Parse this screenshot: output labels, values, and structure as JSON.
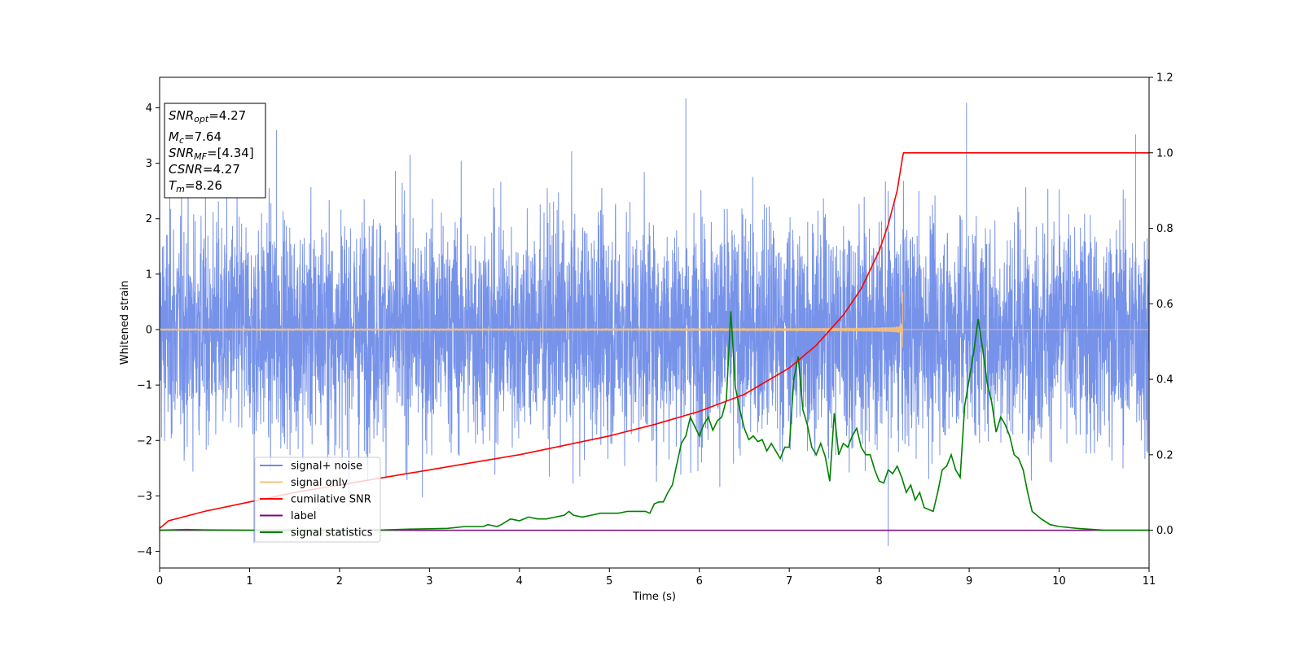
{
  "chart_data": {
    "type": "line",
    "xlabel": "Time (s)",
    "ylabel": "Whitened strain",
    "xlim": [
      0,
      11
    ],
    "ylim_left": [
      -4.3,
      4.55
    ],
    "ylim_right": [
      -0.1,
      1.2
    ],
    "x_ticks": [
      0,
      1,
      2,
      3,
      4,
      5,
      6,
      7,
      8,
      9,
      10,
      11
    ],
    "y_ticks_left": [
      -4,
      -3,
      -2,
      -1,
      0,
      1,
      2,
      3,
      4
    ],
    "y_ticks_right": [
      0.0,
      0.2,
      0.4,
      0.6,
      0.8,
      1.0,
      1.2
    ],
    "grid": false,
    "legend_position": "lower-left",
    "annotation": {
      "snr_opt": {
        "sym": "SNR",
        "sub": "opt",
        "value": "=4.27"
      },
      "mc": {
        "sym": "M",
        "sub": "c",
        "value": "=7.64"
      },
      "snr_mf": {
        "sym": "SNR",
        "sub": "MF",
        "value": "=[4.34]"
      },
      "csnr": {
        "sym": "CSNR",
        "value": "=4.27"
      },
      "tm": {
        "sym": "T",
        "sub": "m",
        "value": "=8.26"
      }
    },
    "series": [
      {
        "name": "signal+ noise",
        "axis": "left",
        "color": "#6f8ce8",
        "description_values": {
          "band_std": 1.0,
          "typical_max": 3.5,
          "peaks": [
            [
              1.3,
              3.6
            ],
            [
              5.85,
              4.17
            ],
            [
              8.97,
              4.09
            ],
            [
              10.85,
              3.52
            ],
            [
              8.1,
              -3.9
            ],
            [
              1.05,
              -3.85
            ]
          ]
        }
      },
      {
        "name": "signal only",
        "axis": "left",
        "color": "#f5c07a",
        "description_values": {
          "chirp_start": 0.0,
          "chirp_end": 8.26,
          "amplitude_at_start": 0.02,
          "amplitude_at_end": 0.68
        }
      },
      {
        "name": "cumilative SNR",
        "axis": "right",
        "color": "#ff0000",
        "x": [
          0,
          0.1,
          0.5,
          1,
          1.5,
          2,
          2.5,
          3,
          3.5,
          4,
          4.5,
          5,
          5.5,
          6,
          6.5,
          7,
          7.3,
          7.6,
          7.8,
          8.0,
          8.1,
          8.2,
          8.26,
          8.27,
          11
        ],
        "y": [
          0.005,
          0.025,
          0.05,
          0.075,
          0.1,
          0.12,
          0.14,
          0.16,
          0.18,
          0.2,
          0.225,
          0.25,
          0.28,
          0.315,
          0.36,
          0.43,
          0.49,
          0.57,
          0.64,
          0.74,
          0.81,
          0.9,
          0.99,
          1.0,
          1.0
        ]
      },
      {
        "name": "label",
        "axis": "right",
        "color": "#800080",
        "x": [
          0,
          11
        ],
        "y": [
          0,
          0
        ]
      },
      {
        "name": "signal statistics",
        "axis": "right",
        "color": "#008000",
        "x": [
          0,
          0.3,
          0.5,
          1,
          1.5,
          2,
          2.5,
          2.8,
          3,
          3.2,
          3.4,
          3.5,
          3.6,
          3.65,
          3.75,
          3.8,
          3.9,
          4.0,
          4.1,
          4.2,
          4.3,
          4.4,
          4.5,
          4.55,
          4.6,
          4.7,
          4.8,
          4.9,
          5.0,
          5.1,
          5.2,
          5.3,
          5.4,
          5.45,
          5.5,
          5.55,
          5.6,
          5.65,
          5.7,
          5.8,
          5.85,
          5.9,
          6.0,
          6.05,
          6.1,
          6.15,
          6.2,
          6.25,
          6.3,
          6.35,
          6.4,
          6.45,
          6.5,
          6.55,
          6.6,
          6.65,
          6.7,
          6.75,
          6.8,
          6.85,
          6.9,
          6.95,
          7.0,
          7.05,
          7.1,
          7.15,
          7.2,
          7.25,
          7.3,
          7.35,
          7.4,
          7.45,
          7.5,
          7.55,
          7.6,
          7.65,
          7.7,
          7.75,
          7.8,
          7.85,
          7.9,
          7.95,
          8.0,
          8.05,
          8.1,
          8.15,
          8.2,
          8.25,
          8.3,
          8.35,
          8.4,
          8.45,
          8.5,
          8.55,
          8.6,
          8.65,
          8.7,
          8.75,
          8.8,
          8.85,
          8.9,
          8.95,
          9.0,
          9.05,
          9.1,
          9.15,
          9.2,
          9.25,
          9.3,
          9.35,
          9.4,
          9.45,
          9.5,
          9.55,
          9.6,
          9.65,
          9.7,
          9.8,
          9.9,
          10.0,
          10.2,
          10.5,
          11
        ],
        "y": [
          0.0,
          0.002,
          0.001,
          0.0,
          0.0,
          0.0,
          0.001,
          0.003,
          0.004,
          0.005,
          0.01,
          0.01,
          0.01,
          0.015,
          0.01,
          0.015,
          0.03,
          0.025,
          0.035,
          0.03,
          0.03,
          0.035,
          0.04,
          0.05,
          0.04,
          0.035,
          0.04,
          0.045,
          0.045,
          0.045,
          0.05,
          0.05,
          0.05,
          0.045,
          0.07,
          0.075,
          0.075,
          0.1,
          0.12,
          0.23,
          0.25,
          0.3,
          0.25,
          0.28,
          0.3,
          0.265,
          0.29,
          0.3,
          0.345,
          0.58,
          0.38,
          0.32,
          0.27,
          0.24,
          0.25,
          0.235,
          0.24,
          0.21,
          0.23,
          0.21,
          0.19,
          0.22,
          0.22,
          0.4,
          0.46,
          0.32,
          0.28,
          0.22,
          0.2,
          0.23,
          0.195,
          0.13,
          0.31,
          0.2,
          0.23,
          0.22,
          0.25,
          0.27,
          0.22,
          0.2,
          0.2,
          0.16,
          0.13,
          0.125,
          0.16,
          0.15,
          0.17,
          0.14,
          0.1,
          0.12,
          0.08,
          0.1,
          0.06,
          0.055,
          0.05,
          0.1,
          0.16,
          0.17,
          0.2,
          0.16,
          0.14,
          0.33,
          0.4,
          0.47,
          0.56,
          0.48,
          0.39,
          0.34,
          0.26,
          0.3,
          0.28,
          0.25,
          0.2,
          0.19,
          0.16,
          0.1,
          0.05,
          0.03,
          0.015,
          0.01,
          0.005,
          0.0,
          0.0
        ]
      }
    ]
  }
}
